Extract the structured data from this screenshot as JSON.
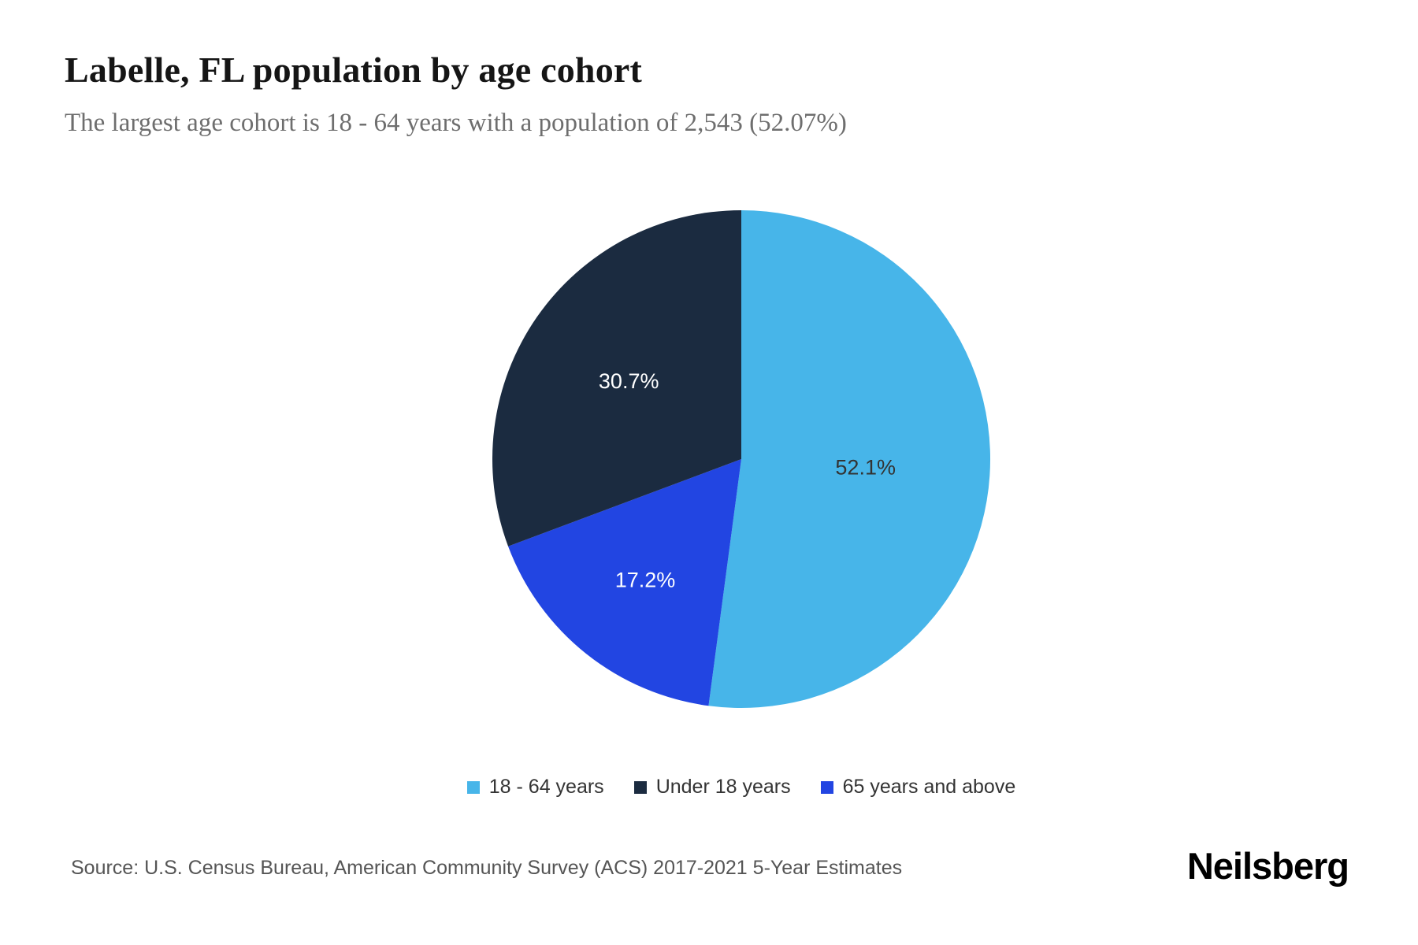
{
  "header": {
    "title": "Labelle, FL population by age cohort",
    "subtitle": "The largest age cohort is 18 - 64 years with a population of 2,543 (52.07%)"
  },
  "chart_data": {
    "type": "pie",
    "title": "Labelle, FL population by age cohort",
    "direction": "clockwise",
    "start_angle_deg": 0,
    "slices": [
      {
        "label": "18 - 64 years",
        "value": 52.1,
        "display": "52.1%",
        "color": "#47b5e9",
        "label_color": "#333333",
        "label_radius": 0.5
      },
      {
        "label": "65 years and above",
        "value": 17.2,
        "display": "17.2%",
        "color": "#2245e2",
        "label_color": "#ffffff",
        "label_radius": 0.62
      },
      {
        "label": "Under 18 years",
        "value": 30.7,
        "display": "30.7%",
        "color": "#1b2b40",
        "label_color": "#ffffff",
        "label_radius": 0.55
      }
    ],
    "legend_position": "bottom"
  },
  "legend": {
    "items": [
      {
        "label": "18 - 64 years",
        "color": "#47b5e9"
      },
      {
        "label": "Under 18 years",
        "color": "#1b2b40"
      },
      {
        "label": "65 years and above",
        "color": "#2245e2"
      }
    ]
  },
  "footer": {
    "source": "Source: U.S. Census Bureau, American Community Survey (ACS) 2017-2021 5-Year Estimates",
    "brand": "Neilsberg"
  }
}
